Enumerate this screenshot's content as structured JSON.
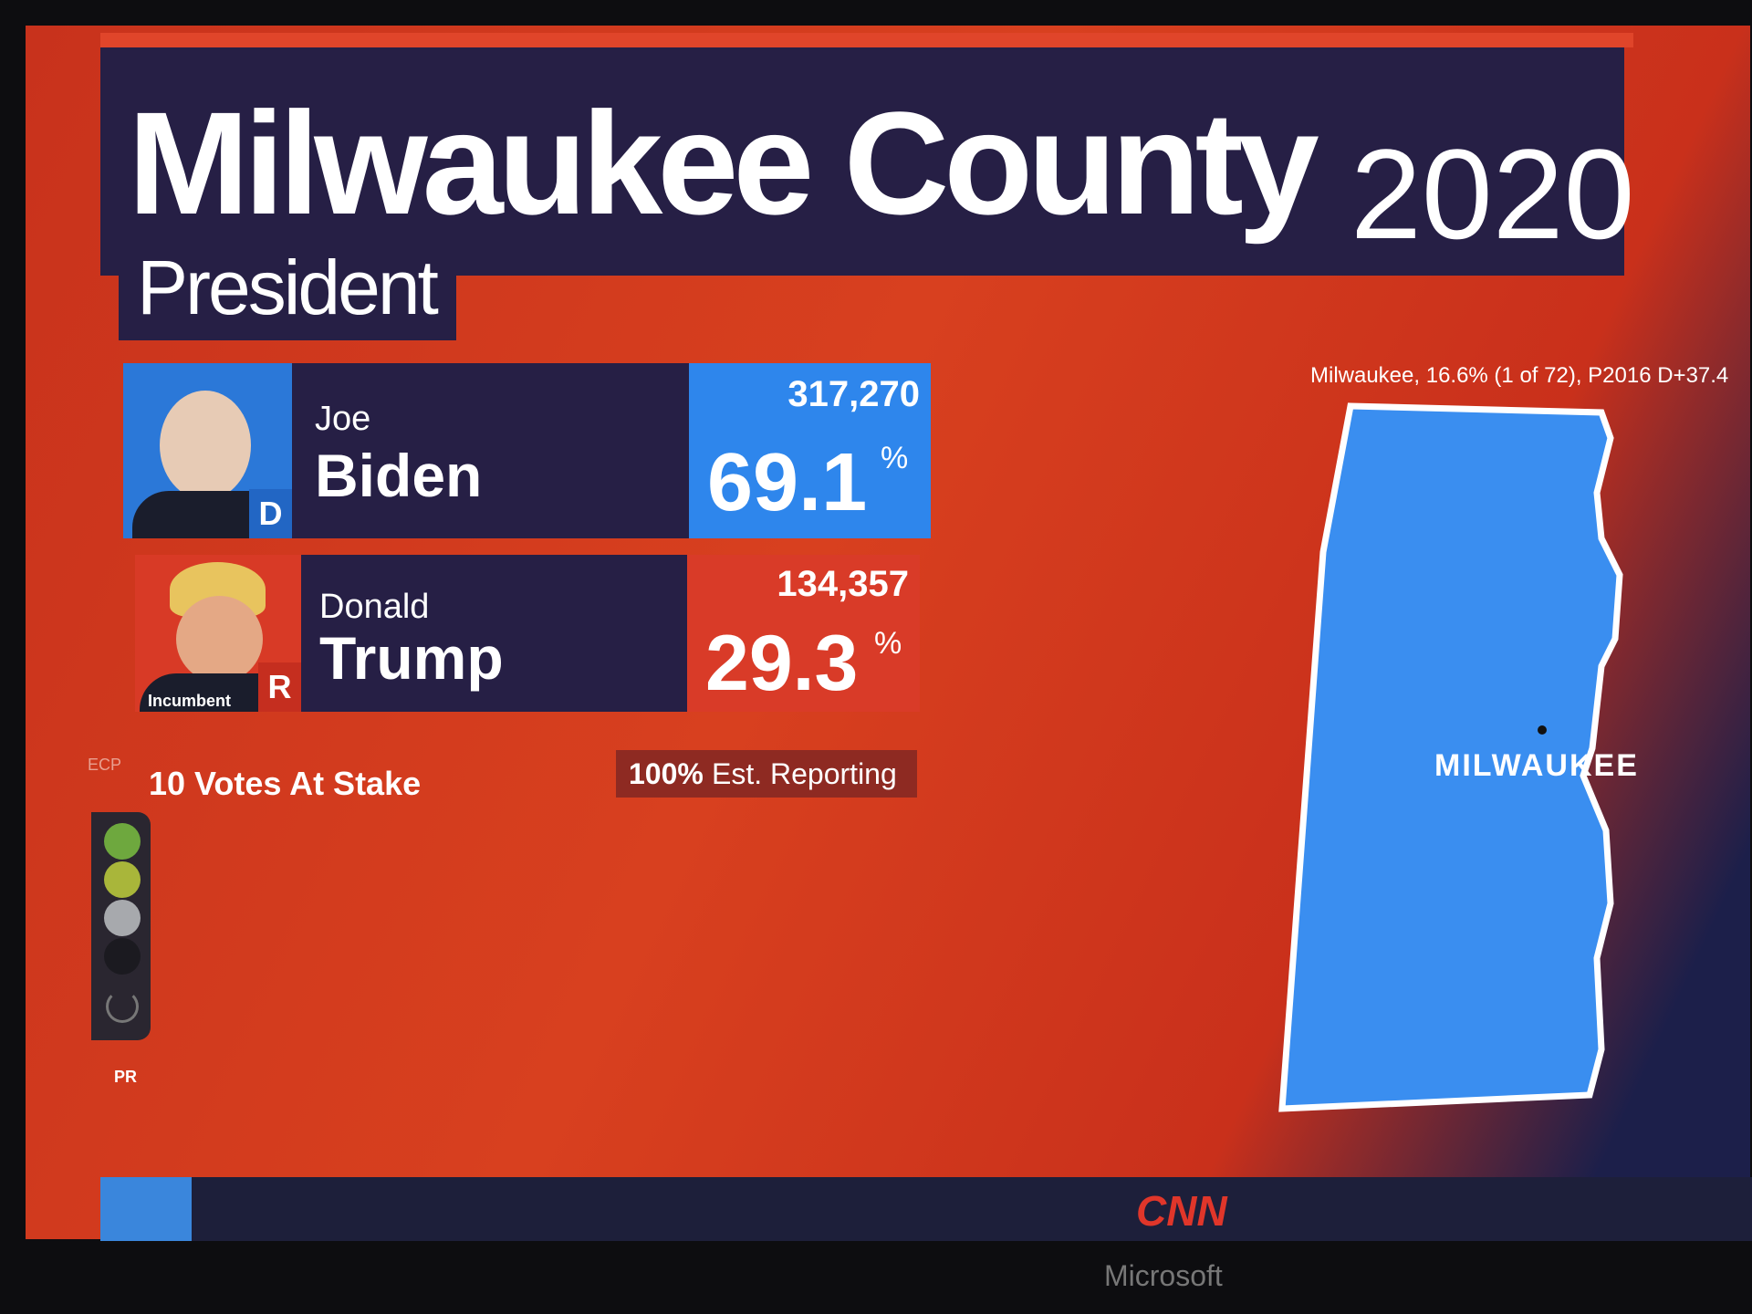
{
  "header": {
    "title": "Milwaukee County",
    "year": "2020",
    "race": "President"
  },
  "candidates": [
    {
      "first": "Joe",
      "last": "Biden",
      "party": "D",
      "votes": "317,270",
      "percent": "69.1",
      "percent_sign": "%"
    },
    {
      "first": "Donald",
      "last": "Trump",
      "party": "R",
      "badge": "Incumbent",
      "votes": "134,357",
      "percent": "29.3",
      "percent_sign": "%"
    }
  ],
  "ecp": "ECP",
  "votes_at_stake": "10 Votes At Stake",
  "reporting": {
    "percent": "100%",
    "label": "Est. Reporting"
  },
  "pr": "PR",
  "map": {
    "info": "Milwaukee, 16.6% (1 of 72), P2016 D+37.4",
    "city": "MILWAUKEE"
  },
  "footer": {
    "network": "CNN",
    "brand": "Microsoft"
  }
}
